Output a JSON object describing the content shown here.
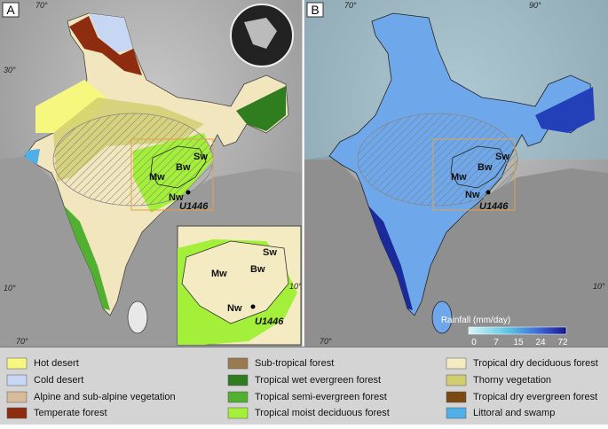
{
  "panels": [
    {
      "label": "A",
      "coord_labels": [
        "70°",
        "30°",
        "10°",
        "70°"
      ],
      "regions": [
        "Mw",
        "Bw",
        "Sw",
        "Nw"
      ],
      "site": "U1446",
      "inset": {
        "regions": [
          "Mw",
          "Bw",
          "Sw",
          "Nw"
        ],
        "site": "U1446",
        "coord_label": "10°"
      }
    },
    {
      "label": "B",
      "coord_labels": [
        "70°",
        "90°",
        "10°",
        "70°"
      ],
      "regions": [
        "Mw",
        "Bw",
        "Sw",
        "Nw"
      ],
      "site": "U1446",
      "colorbar": {
        "title": "Rainfall (mm/day)",
        "ticks": [
          0,
          7,
          15,
          24,
          72
        ]
      }
    }
  ],
  "legend": [
    {
      "label": "Hot desert",
      "color": "#f6f77e"
    },
    {
      "label": "Cold desert",
      "color": "#c7d6f2"
    },
    {
      "label": "Alpine and sub-alpine vegetation",
      "color": "#d8bc9a"
    },
    {
      "label": "Temperate forest",
      "color": "#8e2c10"
    },
    {
      "label": "Sub-tropical forest",
      "color": "#9a7a50"
    },
    {
      "label": "Tropical wet evergreen forest",
      "color": "#2f7d1f"
    },
    {
      "label": "Tropical semi-evergreen forest",
      "color": "#52b030"
    },
    {
      "label": "Tropical moist deciduous forest",
      "color": "#a3ef3a"
    },
    {
      "label": "Tropical dry deciduous forest",
      "color": "#f4ebc3"
    },
    {
      "label": "Thorny vegetation",
      "color": "#cfcd6e"
    },
    {
      "label": "Tropical dry evergreen forest",
      "color": "#7a4a12"
    },
    {
      "label": "Littoral and swamp",
      "color": "#4fb0e8"
    }
  ]
}
